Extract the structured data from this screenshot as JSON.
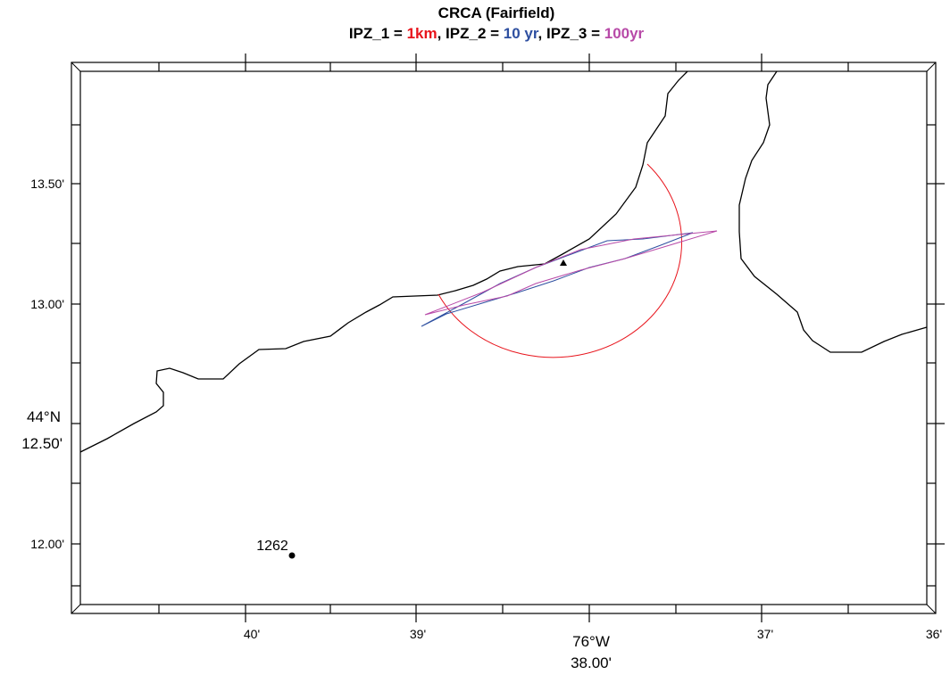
{
  "map": {
    "title": "CRCA (Fairfield)",
    "subtitle": [
      {
        "text": "IPZ_1 = ",
        "color": "#000000"
      },
      {
        "text": "1km",
        "color": "#e8141c"
      },
      {
        "text": ", IPZ_2 = ",
        "color": "#000000"
      },
      {
        "text": "10 yr",
        "color": "#2e4fa0"
      },
      {
        "text": ", IPZ_3 = ",
        "color": "#000000"
      },
      {
        "text": "100yr",
        "color": "#b84aa8"
      }
    ],
    "y_labels": [
      "13.50'",
      "13.00'",
      "44°N",
      "12.50'",
      "12.00'"
    ],
    "x_labels": [
      "40'",
      "39'",
      "76°W",
      "38.00'",
      "37'",
      "36'"
    ],
    "station_label": "1262"
  }
}
